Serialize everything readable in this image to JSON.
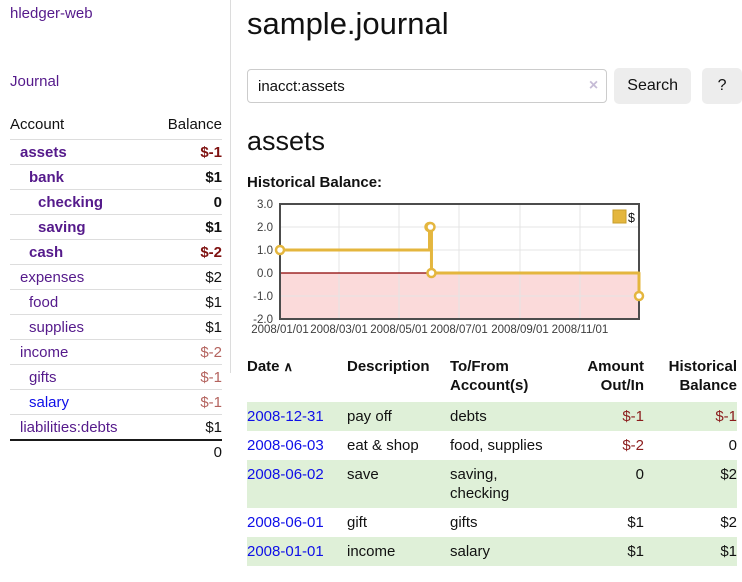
{
  "brand": "hledger-web",
  "nav": {
    "journal": "Journal"
  },
  "colors": {
    "link_purple": "#551a8b",
    "link_blue": "#0f0fe8",
    "negative_dark": "#7f1211",
    "negative_muted": "#b4635e",
    "register_negative": "#8b1c1c",
    "highlight_row": "#dff0d8",
    "series_gold": "#e4b63e"
  },
  "sidebar": {
    "header": {
      "account": "Account",
      "balance": "Balance"
    },
    "accounts": [
      {
        "name": "assets",
        "indent": 1,
        "balance": "$-1",
        "bold": true,
        "neg": "dark"
      },
      {
        "name": "bank",
        "indent": 2,
        "balance": "$1",
        "bold": true
      },
      {
        "name": "checking",
        "indent": 3,
        "balance": "0",
        "bold": true
      },
      {
        "name": "saving",
        "indent": 3,
        "balance": "$1",
        "bold": true
      },
      {
        "name": "cash",
        "indent": 2,
        "balance": "$-2",
        "bold": true,
        "neg": "dark"
      },
      {
        "name": "expenses",
        "indent": 1,
        "balance": "$2"
      },
      {
        "name": "food",
        "indent": 2,
        "balance": "$1"
      },
      {
        "name": "supplies",
        "indent": 2,
        "balance": "$1"
      },
      {
        "name": "income",
        "indent": 1,
        "balance": "$-2",
        "neg": "muted"
      },
      {
        "name": "gifts",
        "indent": 2,
        "balance": "$-1",
        "neg": "muted"
      },
      {
        "name": "salary",
        "indent": 2,
        "balance": "$-1",
        "neg": "muted",
        "unvisited": true
      },
      {
        "name": "liabilities:debts",
        "indent": 1,
        "balance": "$1"
      }
    ],
    "total": "0"
  },
  "header": {
    "title": "sample.journal"
  },
  "search": {
    "value": "inacct:assets",
    "clear_icon": "×",
    "button_label": "Search",
    "help_label": "?"
  },
  "account_view": {
    "title": "assets",
    "chart_heading": "Historical Balance:"
  },
  "chart_data": {
    "type": "line",
    "step": true,
    "title": "Historical Balance:",
    "series": [
      {
        "name": "$",
        "color": "#e4b63e",
        "points": [
          [
            "2008-01-01",
            1
          ],
          [
            "2008-06-01",
            2
          ],
          [
            "2008-06-02",
            2
          ],
          [
            "2008-06-03",
            0
          ],
          [
            "2008-12-31",
            -1
          ]
        ]
      }
    ],
    "x_ticks": [
      "2008/01/01",
      "2008/03/01",
      "2008/05/01",
      "2008/07/01",
      "2008/09/01",
      "2008/11/01"
    ],
    "y_ticks": [
      "3.0",
      "2.0",
      "1.0",
      "0.0",
      "-1.0",
      "-2.0"
    ],
    "ylim": [
      -2,
      3
    ],
    "xlim": [
      "2008-01-01",
      "2008-12-31"
    ],
    "grid": true,
    "legend": {
      "label": "$",
      "position": "top-right"
    },
    "negative_fill": "#fbdada",
    "zero_line_color": "#8b0000"
  },
  "register": {
    "columns": [
      {
        "label": "Date",
        "sort": "asc"
      },
      {
        "label": "Description"
      },
      {
        "label": "To/From Account(s)"
      },
      {
        "label": "Amount Out/In",
        "align": "right"
      },
      {
        "label": "Historical Balance",
        "align": "right"
      }
    ],
    "sort_asc_icon": "∧",
    "rows": [
      {
        "date": "2008-12-31",
        "description": "pay off",
        "accounts": "debts",
        "amount": "$-1",
        "balance": "$-1",
        "highlight": true
      },
      {
        "date": "2008-06-03",
        "description": "eat & shop",
        "accounts": "food, supplies",
        "amount": "$-2",
        "balance": "0",
        "highlight": false
      },
      {
        "date": "2008-06-02",
        "description": "save",
        "accounts": "saving, checking",
        "amount": "0",
        "balance": "$2",
        "highlight": true
      },
      {
        "date": "2008-06-01",
        "description": "gift",
        "accounts": "gifts",
        "amount": "$1",
        "balance": "$2",
        "highlight": false
      },
      {
        "date": "2008-01-01",
        "description": "income",
        "accounts": "salary",
        "amount": "$1",
        "balance": "$1",
        "highlight": true
      }
    ]
  }
}
